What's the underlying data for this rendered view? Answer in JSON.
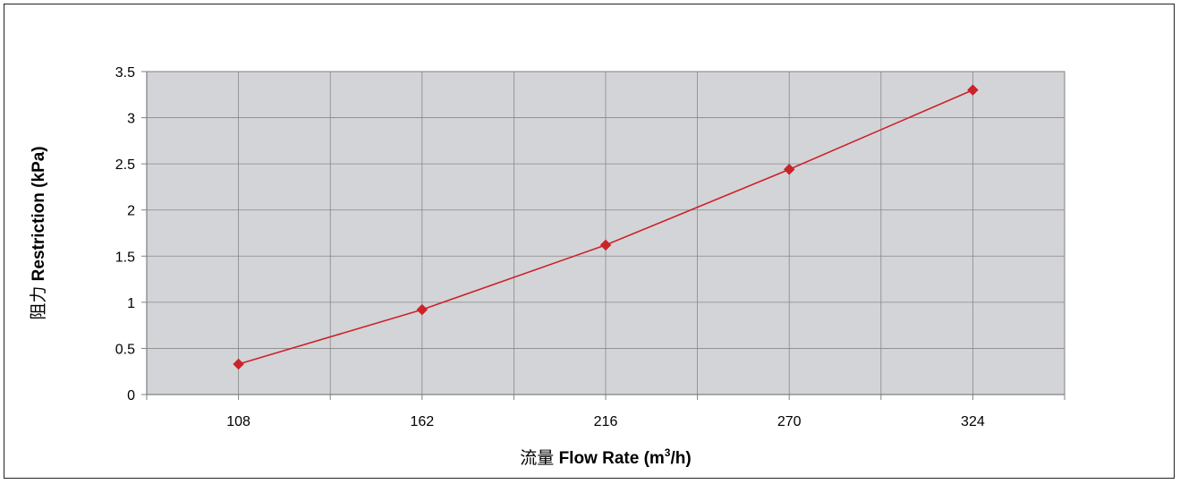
{
  "chart_data": {
    "type": "line",
    "categories": [
      "108",
      "162",
      "216",
      "270",
      "324"
    ],
    "series": [
      {
        "values": [
          0.33,
          0.92,
          1.62,
          2.44,
          3.3
        ],
        "color": "#cc2229",
        "marker": "diamond"
      }
    ],
    "xlabel": {
      "prefix": "流量 ",
      "main": "Flow Rate (m",
      "sup": "3",
      "suffix": "/h)"
    },
    "ylabel": {
      "prefix": "阻力 ",
      "main": "Restriction (kPa)"
    },
    "ylim": [
      0,
      3.5
    ],
    "yticks": [
      "0",
      "0.5",
      "1",
      "1.5",
      "2",
      "2.5",
      "3",
      "3.5"
    ],
    "grid": true,
    "plot_background": "#d3d4d8",
    "grid_color": "#888888"
  }
}
